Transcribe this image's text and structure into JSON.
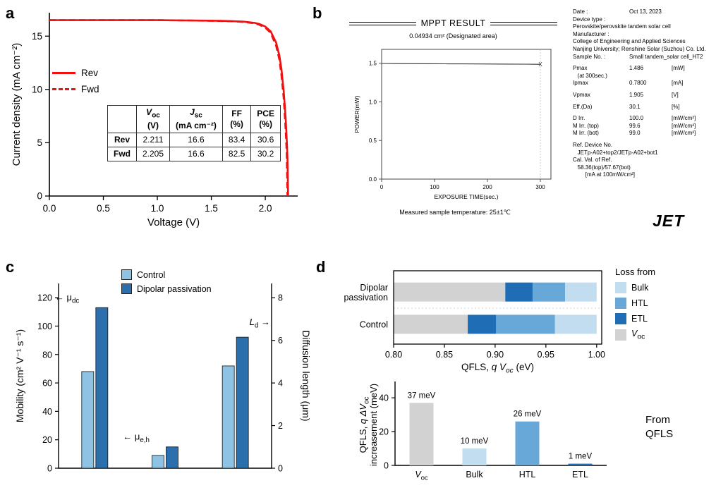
{
  "figure": {
    "background": "#ffffff"
  },
  "panels": {
    "a": {
      "label": "a",
      "legend": [
        {
          "label": "Rev",
          "dash": "solid",
          "color": "#ee1111"
        },
        {
          "label": "Fwd",
          "dash": "dashed",
          "color": "#ee1111"
        }
      ],
      "table": {
        "col_headers_html": [
          "",
          "<i>V</i><sub>oc</sub><br>(V)",
          "<i>J</i><sub>sc</sub><br>(mA cm⁻²)",
          "FF<br>(%)",
          "PCE<br>(%)"
        ],
        "rows": [
          {
            "name": "Rev",
            "values": [
              "2.211",
              "16.6",
              "83.4",
              "30.6"
            ]
          },
          {
            "name": "Fwd",
            "values": [
              "2.205",
              "16.6",
              "82.5",
              "30.2"
            ]
          }
        ]
      }
    },
    "b": {
      "label": "b",
      "title": "MPPT RESULT",
      "subtitle": "0.04934 cm² (Designated area)",
      "footnote": "Measured sample temperature: 25±1℃",
      "logo": "JET",
      "info_rows": [
        {
          "label": "Date :",
          "value": "Oct 13, 2023",
          "unit": ""
        },
        {
          "label": "Device type :",
          "value": "",
          "unit": ""
        },
        {
          "text": "Perovskite/perovskite tandem solar cell"
        },
        {
          "label": "Manufacturer :",
          "value": "",
          "unit": ""
        },
        {
          "text": "College of Engineering and Applied Sciences"
        },
        {
          "text": "Nanjing University; Renshine Solar (Suzhou) Co. Ltd."
        },
        {
          "label": "Sample No. :",
          "value": "Small tandem_solar cell_HT2",
          "unit": ""
        },
        {
          "label": "Pmax",
          "value": "1.486",
          "unit": "[mW]",
          "gap": true
        },
        {
          "text": "   (at 300sec.)"
        },
        {
          "label": "Ipmax",
          "value": "0.7800",
          "unit": "[mA]"
        },
        {
          "label": "Vpmax",
          "value": "1.905",
          "unit": "[V]",
          "gap": true
        },
        {
          "label": "Eff.(Da)",
          "value": "30.1",
          "unit": "[%]",
          "gap": true
        },
        {
          "label": "D Irr.",
          "value": "100.0",
          "unit": "[mW/cm²]",
          "gap": true
        },
        {
          "label": "M Irr. (top)",
          "value": "99.6",
          "unit": "[mW/cm²]"
        },
        {
          "label": "M Irr. (bot)",
          "value": "99.0",
          "unit": "[mW/cm²]"
        },
        {
          "label": "Ref. Device No.",
          "value": "",
          "unit": "",
          "gap": true
        },
        {
          "text": "   JETp-A02+top2/JETp-A02+bot1"
        },
        {
          "label": "Cal. Val. of Ref.",
          "value": "",
          "unit": ""
        },
        {
          "text": "   58.36(top)/57.67(bot)"
        },
        {
          "text": "        [mA at 100mW/cm²]"
        }
      ]
    },
    "c": {
      "label": "c",
      "legend": [
        {
          "label": "Control",
          "color": "#8fc3e4"
        },
        {
          "label": "Dipolar passivation",
          "color": "#2c6fad"
        }
      ]
    },
    "d": {
      "label": "d",
      "legend": {
        "title": "Loss from",
        "items": [
          {
            "label_html": "Bulk",
            "color": "#c3ddf0"
          },
          {
            "label_html": "HTL",
            "color": "#68a8d8"
          },
          {
            "label_html": "ETL",
            "color": "#1f6eb5"
          },
          {
            "label_html": "<i>V</i><sub>oc</sub>",
            "color": "#d2d2d2"
          }
        ]
      },
      "from_qfls": "From QFLS"
    }
  },
  "chart_data": [
    {
      "id": "jv_curve",
      "panel": "a",
      "type": "line",
      "xlabel": "Voltage (V)",
      "ylabel": "Current density (mA cm⁻²)",
      "xlim": [
        0,
        2.3
      ],
      "ylim": [
        0,
        17.2
      ],
      "xticks": [
        0,
        0.5,
        1.0,
        1.5,
        2.0
      ],
      "xtick_labels": [
        "0.0",
        "0.5",
        "1.0",
        "1.5",
        "2.0"
      ],
      "yticks": [
        0,
        5,
        10,
        15
      ],
      "ytick_labels": [
        "0",
        "5",
        "10",
        "15"
      ],
      "line_color": "#ee1111",
      "series": [
        {
          "name": "Rev",
          "dash": "solid",
          "x": [
            0,
            0.2,
            0.4,
            0.6,
            0.8,
            1.0,
            1.2,
            1.4,
            1.6,
            1.7,
            1.8,
            1.9,
            1.95,
            2.0,
            2.05,
            2.1,
            2.13,
            2.15,
            2.17,
            2.18,
            2.19,
            2.2,
            2.205,
            2.211
          ],
          "y": [
            16.5,
            16.5,
            16.5,
            16.5,
            16.5,
            16.5,
            16.48,
            16.46,
            16.43,
            16.4,
            16.36,
            16.25,
            16.12,
            15.9,
            15.45,
            14.4,
            13.2,
            11.9,
            9.9,
            8.6,
            7.0,
            5.0,
            3.6,
            0
          ]
        },
        {
          "name": "Fwd",
          "dash": "dashed",
          "x": [
            0,
            0.2,
            0.4,
            0.6,
            0.8,
            1.0,
            1.2,
            1.4,
            1.6,
            1.7,
            1.8,
            1.9,
            1.95,
            2.0,
            2.05,
            2.1,
            2.13,
            2.15,
            2.17,
            2.18,
            2.19,
            2.198,
            2.205
          ],
          "y": [
            16.5,
            16.5,
            16.5,
            16.5,
            16.5,
            16.5,
            16.48,
            16.45,
            16.42,
            16.39,
            16.33,
            16.2,
            16.05,
            15.8,
            15.3,
            14.1,
            12.8,
            11.3,
            9.2,
            7.7,
            5.8,
            4.0,
            0
          ]
        }
      ]
    },
    {
      "id": "mppt",
      "panel": "b",
      "type": "line",
      "title": "MPPT RESULT",
      "subtitle": "0.04934 cm² (Designated area)",
      "xlabel": "EXPOSURE TIME(sec.)",
      "ylabel": "POWER(mW)",
      "xlim": [
        0,
        320
      ],
      "ylim": [
        0,
        1.68
      ],
      "xticks": [
        0,
        100,
        200,
        300
      ],
      "xtick_labels": [
        "0",
        "100",
        "200",
        "300"
      ],
      "yticks": [
        0,
        0.5,
        1.0,
        1.5
      ],
      "ytick_labels": [
        "0.0",
        "0.5",
        "1.0",
        "1.5"
      ],
      "series": [
        {
          "name": "power",
          "color": "#333333",
          "x": [
            0,
            30,
            60,
            90,
            120,
            150,
            180,
            210,
            240,
            270,
            300
          ],
          "y": [
            1.497,
            1.496,
            1.495,
            1.494,
            1.493,
            1.492,
            1.491,
            1.49,
            1.489,
            1.488,
            1.486
          ]
        }
      ],
      "end_marker": {
        "x": 300,
        "y": 1.486,
        "glyph": "X"
      }
    },
    {
      "id": "mobility_diffusion",
      "panel": "c",
      "type": "bar",
      "ylabel_left": "Mobility (cm² V⁻¹ s⁻¹)",
      "ylabel_right": "Diffusion length (μm)",
      "ylim_left": [
        0,
        130
      ],
      "ylim_right": [
        0,
        8.67
      ],
      "yticks_left": [
        0,
        20,
        40,
        60,
        80,
        100,
        120
      ],
      "yticks_right": [
        0,
        2,
        4,
        6,
        8
      ],
      "series": [
        {
          "name": "Control",
          "color": "#8fc3e4"
        },
        {
          "name": "Dipolar passivation",
          "color": "#2c6fad"
        }
      ],
      "groups": [
        {
          "name": "mu_dc",
          "axis": "left",
          "control": 68,
          "dipolar": 113,
          "annotation": {
            "segs": [
              {
                "t": "← μ"
              },
              {
                "t": "dc",
                "sub": true
              }
            ],
            "at": 120,
            "anchor": "end",
            "dx": -22
          }
        },
        {
          "name": "mu_e,h",
          "axis": "left",
          "control": 9,
          "dipolar": 15,
          "annotation": {
            "segs": [
              {
                "t": "← μ"
              },
              {
                "t": "e,h",
                "sub": true
              }
            ],
            "at": 22,
            "anchor": "end",
            "dx": -22
          }
        },
        {
          "name": "L_d",
          "axis": "right",
          "control": 4.8,
          "dipolar": 6.15,
          "annotation": {
            "segs": [
              {
                "t": "L",
                "italic": true
              },
              {
                "t": "d",
                "sub": true
              },
              {
                "t": " →"
              }
            ],
            "at": 6.85,
            "anchor": "start",
            "dx": 20
          }
        }
      ]
    },
    {
      "id": "qfls_stacked",
      "panel": "d-top",
      "type": "bar",
      "orientation": "horizontal",
      "xlabel_segs": [
        {
          "t": "QFLS, "
        },
        {
          "t": "q V",
          "italic": true
        },
        {
          "t": "oc",
          "italic": true,
          "sub": true
        },
        {
          "t": " (eV)"
        }
      ],
      "xlim": [
        0.8,
        1.005
      ],
      "xticks": [
        0.8,
        0.85,
        0.9,
        0.95,
        1.0
      ],
      "xtick_labels": [
        "0.80",
        "0.85",
        "0.90",
        "0.95",
        "1.00"
      ],
      "categories": [
        "Dipolar passivation",
        "Control"
      ],
      "categories_lines": [
        [
          "Dipolar",
          "passivation"
        ],
        [
          "Control"
        ]
      ],
      "series": [
        {
          "name": "V_oc",
          "color": "#d2d2d2",
          "absolute": true,
          "values": [
            0.91,
            0.873
          ]
        },
        {
          "name": "ETL",
          "color": "#1f6eb5",
          "values": [
            0.027,
            0.028
          ]
        },
        {
          "name": "HTL",
          "color": "#68a8d8",
          "values": [
            0.032,
            0.058
          ]
        },
        {
          "name": "Bulk",
          "color": "#c3ddf0",
          "values": [
            0.031,
            0.041
          ]
        }
      ],
      "legend": {
        "title": "Loss from",
        "items": [
          "Bulk",
          "HTL",
          "ETL",
          "V_oc"
        ]
      }
    },
    {
      "id": "qfls_increase",
      "panel": "d-bottom",
      "type": "bar",
      "ylabel_lines": [
        [
          {
            "t": "QFLS, "
          },
          {
            "t": "q ΔV",
            "italic": true
          },
          {
            "t": "oc",
            "sub": true
          }
        ],
        [
          {
            "t": "increasement (meV)"
          }
        ]
      ],
      "ylim": [
        0,
        48
      ],
      "yticks": [
        0,
        20,
        40
      ],
      "ytick_labels": [
        "0",
        "20",
        "40"
      ],
      "categories": [
        "V_oc",
        "Bulk",
        "HTL",
        "ETL"
      ],
      "categories_segs": [
        [
          {
            "t": "V",
            "italic": true
          },
          {
            "t": "oc",
            "sub": true
          }
        ],
        [
          {
            "t": "Bulk"
          }
        ],
        [
          {
            "t": "HTL"
          }
        ],
        [
          {
            "t": "ETL"
          }
        ]
      ],
      "values": [
        37,
        10,
        26,
        1
      ],
      "bar_labels": [
        "37 meV",
        "10 meV",
        "26 meV",
        "1 meV"
      ],
      "colors": [
        "#d2d2d2",
        "#c3ddf0",
        "#68a8d8",
        "#1f6eb5"
      ]
    }
  ]
}
